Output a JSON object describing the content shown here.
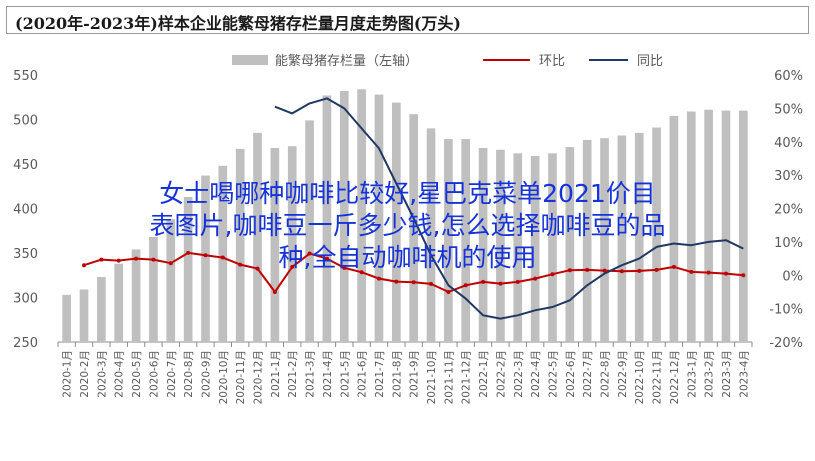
{
  "title": "(2020年-2023年)样本企业能繁母猪存栏量月度走势图(万头)",
  "overlay_text": {
    "line1": "女士喝哪种咖啡比较好,星巴克菜单2021价目",
    "line2": "表图片,咖啡豆一斤多少钱,怎么选择咖啡豆的品",
    "line3": "种,全自动咖啡机的使用"
  },
  "chart_data": {
    "type": "bar",
    "categories": [
      "2020-1月",
      "2020-2月",
      "2020-3月",
      "2020-4月",
      "2020-5月",
      "2020-6月",
      "2020-7月",
      "2020-8月",
      "2020-9月",
      "2020-10月",
      "2020-11月",
      "2020-12月",
      "2021-1月",
      "2021-2月",
      "2021-3月",
      "2021-4月",
      "2021-5月",
      "2021-6月",
      "2021-7月",
      "2021-8月",
      "2021-9月",
      "2021-10月",
      "2021-11月",
      "2021-12月",
      "2022-1月",
      "2022-2月",
      "2022-3月",
      "2022-4月",
      "2022-5月",
      "2022-6月",
      "2022-7月",
      "2022-8月",
      "2022-9月",
      "2022-10月",
      "2022-11月",
      "2022-12月",
      "2023-1月",
      "2023-2月",
      "2023-3月",
      "2023-4月"
    ],
    "series": [
      {
        "name": "能繁母猪存栏量（左轴）",
        "axis": "left",
        "color": "#bfbfbf",
        "values": [
          303,
          309,
          323,
          338,
          354,
          368,
          388,
          413,
          437,
          448,
          467,
          485,
          468,
          470,
          499,
          527,
          532,
          534,
          528,
          519,
          506,
          490,
          478,
          478,
          468,
          466,
          462,
          459,
          462,
          469,
          477,
          479,
          482,
          485,
          491,
          504,
          509,
          511,
          510,
          510
        ]
      },
      {
        "name": "环比",
        "axis": "right",
        "color": "#c00000",
        "values": [
          null,
          3.0,
          4.7,
          4.4,
          5.0,
          4.7,
          3.6,
          6.7,
          6.0,
          5.3,
          3.2,
          2.0,
          -5.0,
          2.5,
          6.5,
          5.0,
          2.2,
          0.9,
          -1.0,
          -1.9,
          -2.1,
          -2.6,
          -5.0,
          -3.0,
          -2.0,
          -2.5,
          -2.0,
          -1.0,
          0.3,
          1.5,
          1.6,
          1.4,
          1.2,
          1.3,
          1.6,
          2.5,
          1.0,
          0.8,
          0.5,
          0.0
        ]
      },
      {
        "name": "同比",
        "axis": "right",
        "color": "#1f3864",
        "values": [
          null,
          null,
          null,
          null,
          null,
          null,
          null,
          null,
          null,
          null,
          null,
          null,
          50.5,
          48.5,
          51.5,
          53.0,
          50.0,
          44.0,
          38.0,
          27.5,
          17.0,
          6.0,
          -3.0,
          -7.0,
          -12.0,
          -13.0,
          -12.0,
          -10.5,
          -9.5,
          -7.5,
          -3.0,
          0.5,
          3.0,
          5.0,
          8.5,
          9.5,
          9.0,
          10.0,
          10.5,
          8.0
        ]
      }
    ],
    "left_axis": {
      "ylim": [
        250,
        550
      ],
      "ticks": [
        250,
        300,
        350,
        400,
        450,
        500,
        550
      ]
    },
    "right_axis": {
      "ylim": [
        -20,
        60
      ],
      "ticks": [
        "-20%",
        "-10%",
        "0%",
        "10%",
        "20%",
        "30%",
        "40%",
        "50%",
        "60%"
      ]
    },
    "legend": {
      "placement": "top"
    },
    "grid": false
  }
}
